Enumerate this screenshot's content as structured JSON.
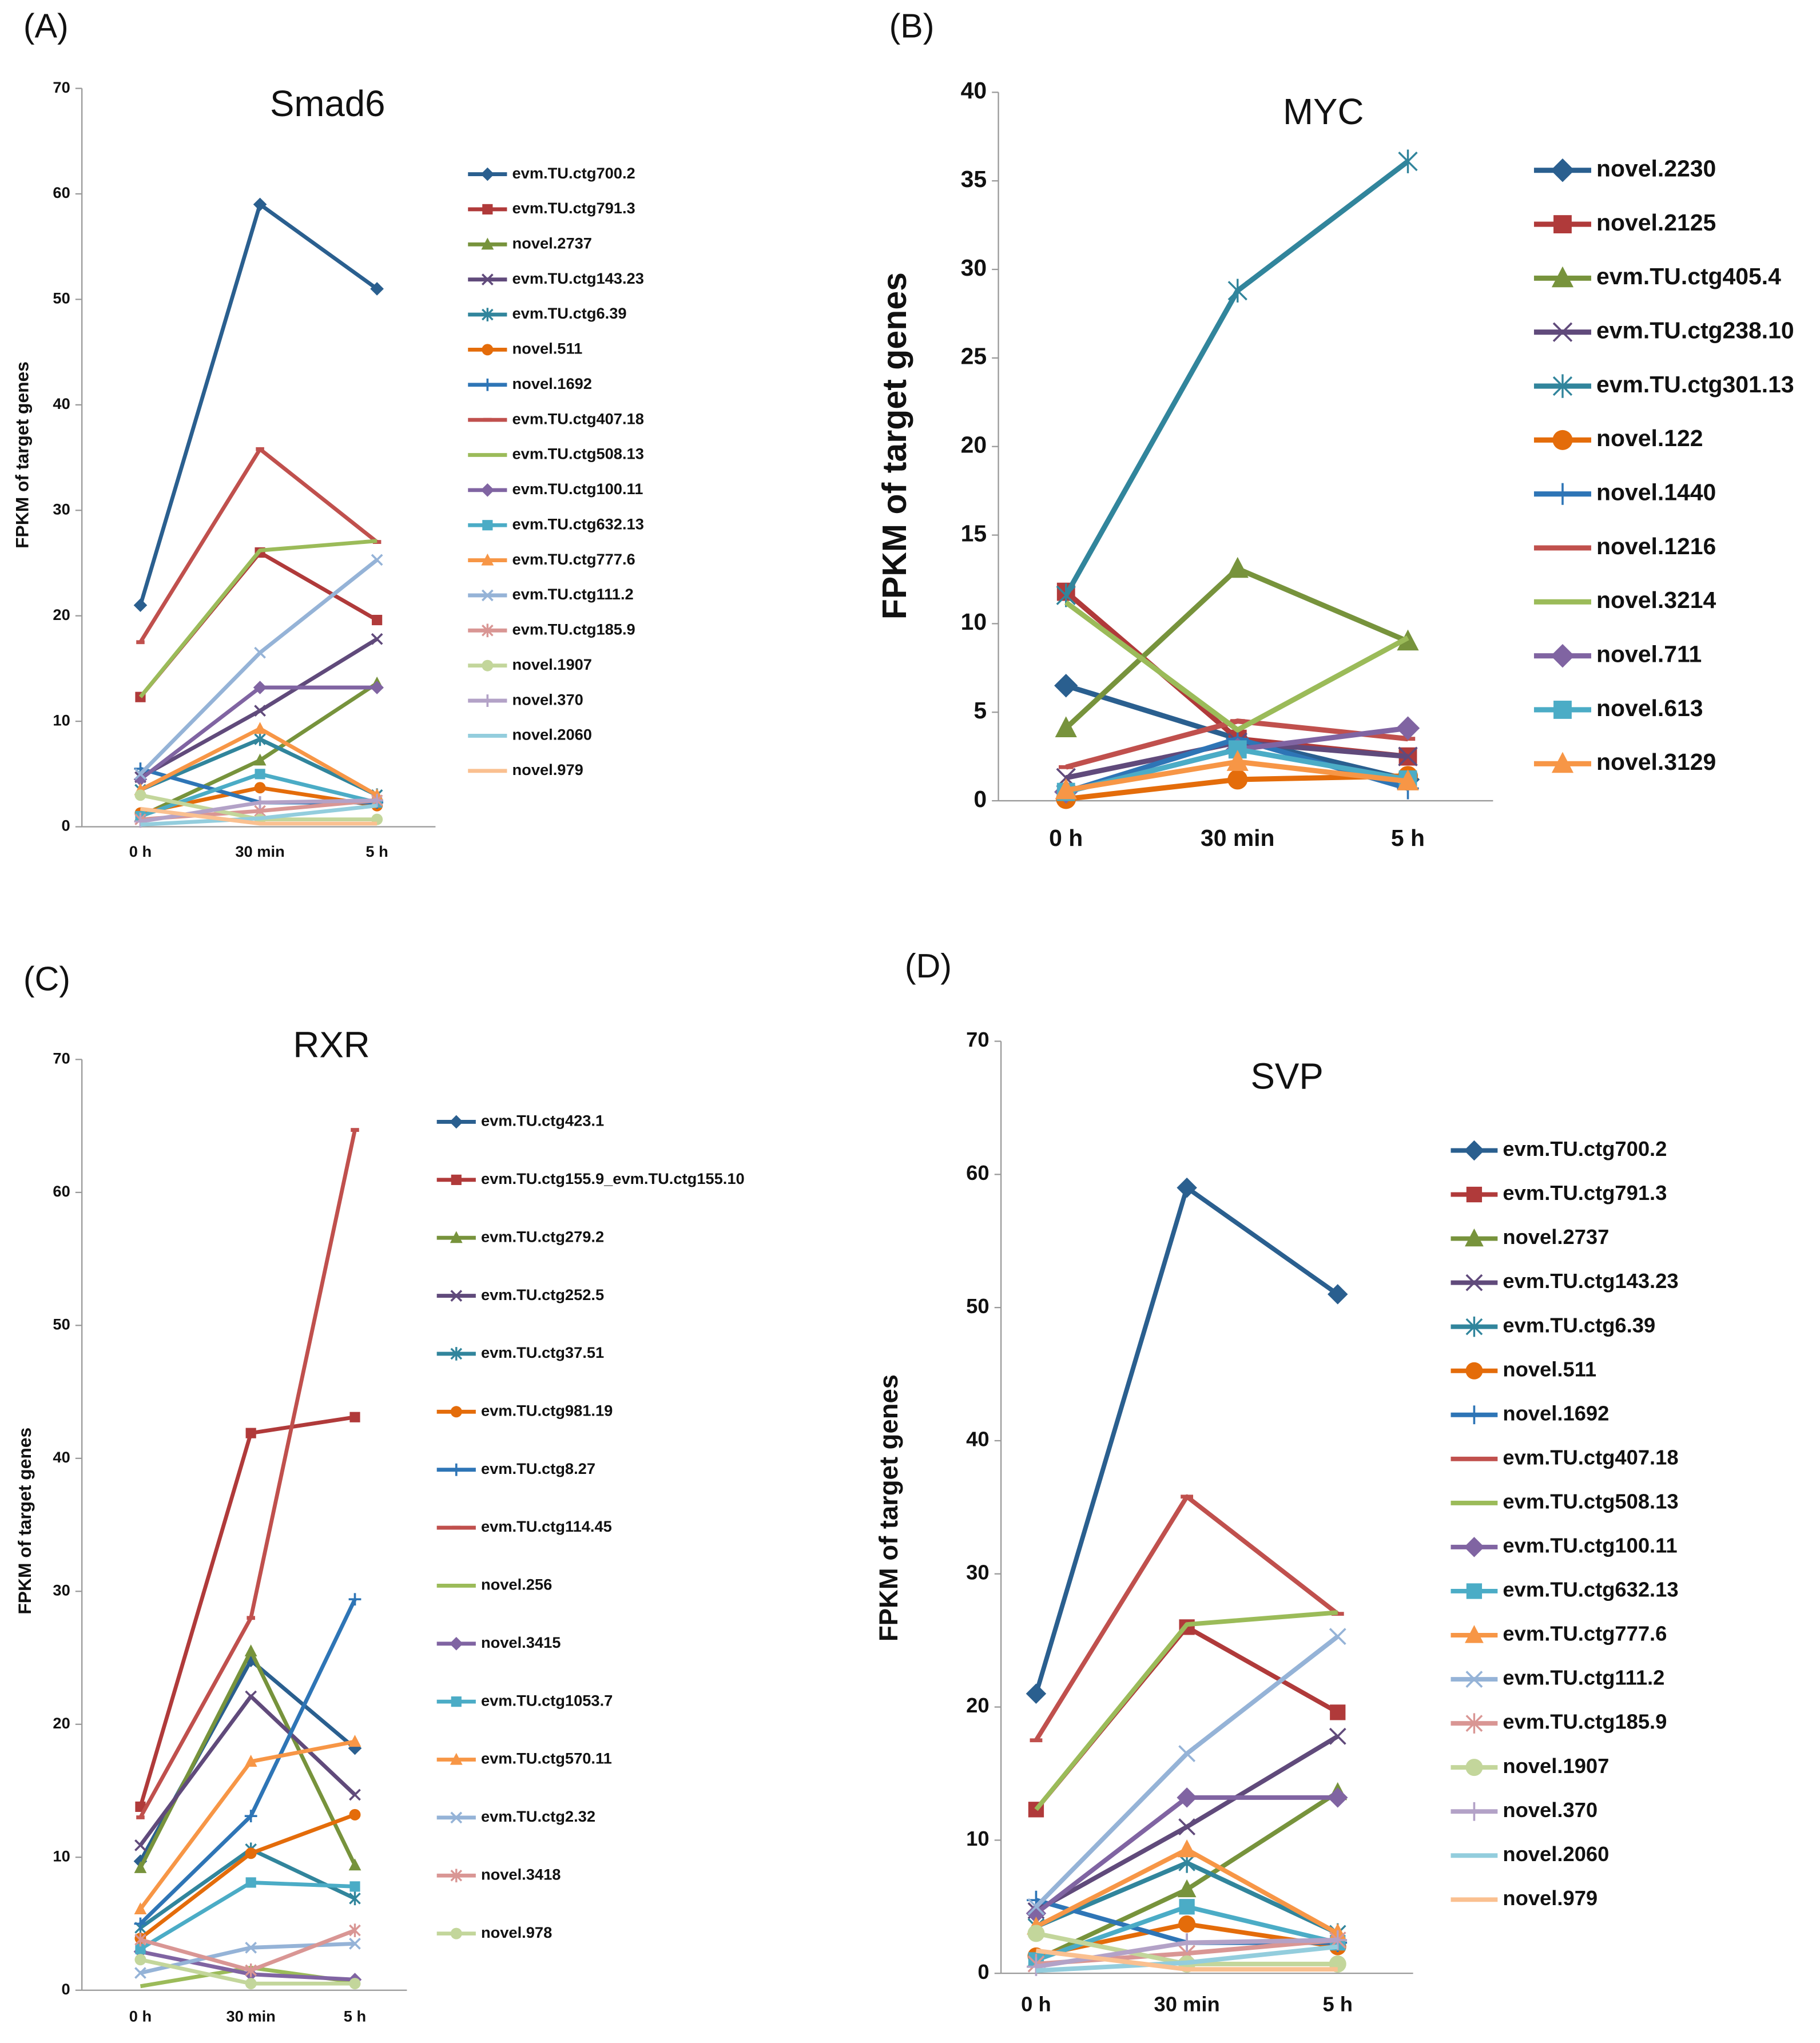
{
  "chart_data": [
    {
      "type": "line",
      "panel": "(A)",
      "title": "Smad6",
      "y_label": "FPKM of target genes",
      "categories": [
        "0 h",
        "30 min",
        "5 h"
      ],
      "ylim": [
        0,
        70
      ],
      "yticks": [
        0,
        10,
        20,
        30,
        40,
        50,
        60,
        70
      ],
      "series": [
        {
          "name": "evm.TU.ctg700.2",
          "color": "#2a5f8f",
          "marker": "diamond",
          "values": [
            21,
            59,
            51
          ]
        },
        {
          "name": "evm.TU.ctg791.3",
          "color": "#b03a3a",
          "marker": "square",
          "values": [
            12.3,
            26,
            19.6
          ]
        },
        {
          "name": "novel.2737",
          "color": "#77933c",
          "marker": "triangle",
          "values": [
            1,
            6.3,
            13.6
          ]
        },
        {
          "name": "evm.TU.ctg143.23",
          "color": "#604a7b",
          "marker": "x",
          "values": [
            4.7,
            11,
            17.8
          ]
        },
        {
          "name": "evm.TU.ctg6.39",
          "color": "#31859c",
          "marker": "star",
          "values": [
            3.5,
            8.3,
            3
          ]
        },
        {
          "name": "novel.511",
          "color": "#e46c0a",
          "marker": "circle",
          "values": [
            1.3,
            3.7,
            2
          ]
        },
        {
          "name": "novel.1692",
          "color": "#2e75b6",
          "marker": "plus",
          "values": [
            5.5,
            2.3,
            2.3
          ]
        },
        {
          "name": "evm.TU.ctg407.18",
          "color": "#c0504d",
          "marker": "dash",
          "values": [
            17.5,
            35.8,
            27
          ]
        },
        {
          "name": "evm.TU.ctg508.13",
          "color": "#9bbb59",
          "marker": "none",
          "values": [
            12.3,
            26.2,
            27.1
          ]
        },
        {
          "name": "evm.TU.ctg100.11",
          "color": "#8064a2",
          "marker": "diamond",
          "values": [
            4.5,
            13.2,
            13.2
          ]
        },
        {
          "name": "evm.TU.ctg632.13",
          "color": "#4bacc6",
          "marker": "square",
          "values": [
            1,
            5,
            2.3
          ]
        },
        {
          "name": "evm.TU.ctg777.6",
          "color": "#f79646",
          "marker": "triangle",
          "values": [
            3.5,
            9.3,
            3
          ]
        },
        {
          "name": "evm.TU.ctg111.2",
          "color": "#95b3d7",
          "marker": "x",
          "values": [
            5,
            16.5,
            25.3
          ]
        },
        {
          "name": "evm.TU.ctg185.9",
          "color": "#d99694",
          "marker": "star",
          "values": [
            0.7,
            1.5,
            2.5
          ]
        },
        {
          "name": "novel.1907",
          "color": "#c3d69b",
          "marker": "circle",
          "values": [
            3,
            0.7,
            0.7
          ]
        },
        {
          "name": "novel.370",
          "color": "#b3a2c7",
          "marker": "plus",
          "values": [
            0.5,
            2.3,
            2.5
          ]
        },
        {
          "name": "novel.2060",
          "color": "#93cddd",
          "marker": "none",
          "values": [
            0.2,
            0.8,
            2
          ]
        },
        {
          "name": "novel.979",
          "color": "#fac090",
          "marker": "none",
          "values": [
            1.7,
            0.3,
            0.3
          ]
        }
      ]
    },
    {
      "type": "line",
      "panel": "(B)",
      "title": "MYC",
      "y_label": "FPKM of target genes",
      "categories": [
        "0 h",
        "30 min",
        "5 h"
      ],
      "ylim": [
        0,
        40
      ],
      "yticks": [
        0,
        5,
        10,
        15,
        20,
        25,
        30,
        35,
        40
      ],
      "series": [
        {
          "name": "novel.2230",
          "color": "#2a5f8f",
          "marker": "diamond",
          "values": [
            6.5,
            3.5,
            1.2
          ]
        },
        {
          "name": "novel.2125",
          "color": "#b03a3a",
          "marker": "square",
          "values": [
            11.8,
            3.5,
            2.5
          ]
        },
        {
          "name": "evm.TU.ctg405.4",
          "color": "#77933c",
          "marker": "triangle",
          "values": [
            4.1,
            13.1,
            9
          ]
        },
        {
          "name": "evm.TU.ctg238.10",
          "color": "#604a7b",
          "marker": "x",
          "values": [
            1.3,
            3.3,
            2.5
          ]
        },
        {
          "name": "evm.TU.ctg301.13",
          "color": "#31859c",
          "marker": "star",
          "values": [
            11.6,
            28.8,
            36.1
          ]
        },
        {
          "name": "novel.122",
          "color": "#e46c0a",
          "marker": "circle",
          "values": [
            0.1,
            1.2,
            1.4
          ]
        },
        {
          "name": "novel.1440",
          "color": "#2e75b6",
          "marker": "plus",
          "values": [
            0.5,
            3.5,
            0.7
          ]
        },
        {
          "name": "novel.1216",
          "color": "#c0504d",
          "marker": "dash",
          "values": [
            1.9,
            4.5,
            3.5
          ]
        },
        {
          "name": "novel.3214",
          "color": "#9bbb59",
          "marker": "none",
          "values": [
            11.2,
            4,
            9.2
          ]
        },
        {
          "name": "novel.711",
          "color": "#8064a2",
          "marker": "diamond",
          "values": [
            0.5,
            2.9,
            4.1
          ]
        },
        {
          "name": "novel.613",
          "color": "#4bacc6",
          "marker": "square",
          "values": [
            0.5,
            2.9,
            1.2
          ]
        },
        {
          "name": "novel.3129",
          "color": "#f79646",
          "marker": "triangle",
          "values": [
            0.6,
            2.2,
            1.1
          ]
        }
      ]
    },
    {
      "type": "line",
      "panel": "(C)",
      "title": "RXR",
      "y_label": "FPKM of target genes",
      "categories": [
        "0 h",
        "30 min",
        "5 h"
      ],
      "ylim": [
        0,
        70
      ],
      "yticks": [
        0,
        10,
        20,
        30,
        40,
        50,
        60,
        70
      ],
      "series": [
        {
          "name": "evm.TU.ctg423.1",
          "color": "#2a5f8f",
          "marker": "diamond",
          "values": [
            9.7,
            24.8,
            18.2
          ]
        },
        {
          "name": "evm.TU.ctg155.9_evm.TU.ctg155.10",
          "color": "#b03a3a",
          "marker": "square",
          "values": [
            13.8,
            41.9,
            43.1
          ]
        },
        {
          "name": "evm.TU.ctg279.2",
          "color": "#77933c",
          "marker": "triangle",
          "values": [
            9.2,
            25.5,
            9.4
          ]
        },
        {
          "name": "evm.TU.ctg252.5",
          "color": "#604a7b",
          "marker": "x",
          "values": [
            10.9,
            22.1,
            14.7
          ]
        },
        {
          "name": "evm.TU.ctg37.51",
          "color": "#31859c",
          "marker": "star",
          "values": [
            4.7,
            10.6,
            6.9
          ]
        },
        {
          "name": "evm.TU.ctg981.19",
          "color": "#e46c0a",
          "marker": "circle",
          "values": [
            3.9,
            10.3,
            13.2
          ]
        },
        {
          "name": "evm.TU.ctg8.27",
          "color": "#2e75b6",
          "marker": "plus",
          "values": [
            5,
            13.1,
            29.4
          ]
        },
        {
          "name": "evm.TU.ctg114.45",
          "color": "#c0504d",
          "marker": "dash",
          "values": [
            13,
            28,
            64.7
          ]
        },
        {
          "name": "novel.256",
          "color": "#9bbb59",
          "marker": "none",
          "values": [
            0.3,
            1.7,
            0.6
          ]
        },
        {
          "name": "novel.3415",
          "color": "#8064a2",
          "marker": "diamond",
          "values": [
            2.9,
            1.2,
            0.8
          ]
        },
        {
          "name": "evm.TU.ctg1053.7",
          "color": "#4bacc6",
          "marker": "square",
          "values": [
            3.1,
            8.1,
            7.8
          ]
        },
        {
          "name": "evm.TU.ctg570.11",
          "color": "#f79646",
          "marker": "triangle",
          "values": [
            6.1,
            17.2,
            18.7
          ]
        },
        {
          "name": "evm.TU.ctg2.32",
          "color": "#95b3d7",
          "marker": "x",
          "values": [
            1.3,
            3.2,
            3.5
          ]
        },
        {
          "name": "novel.3418",
          "color": "#d99694",
          "marker": "star",
          "values": [
            3.8,
            1.5,
            4.5
          ]
        },
        {
          "name": "novel.978",
          "color": "#c3d69b",
          "marker": "circle",
          "values": [
            2.3,
            0.5,
            0.5
          ]
        }
      ]
    },
    {
      "type": "line",
      "panel": "(D)",
      "title": "SVP",
      "y_label": "FPKM of target genes",
      "categories": [
        "0 h",
        "30 min",
        "5 h"
      ],
      "ylim": [
        0,
        70
      ],
      "yticks": [
        0,
        10,
        20,
        30,
        40,
        50,
        60,
        70
      ],
      "series": [
        {
          "name": "evm.TU.ctg700.2",
          "color": "#2a5f8f",
          "marker": "diamond",
          "values": [
            21,
            59,
            51
          ]
        },
        {
          "name": "evm.TU.ctg791.3",
          "color": "#b03a3a",
          "marker": "square",
          "values": [
            12.3,
            26,
            19.6
          ]
        },
        {
          "name": "novel.2737",
          "color": "#77933c",
          "marker": "triangle",
          "values": [
            1,
            6.3,
            13.6
          ]
        },
        {
          "name": "evm.TU.ctg143.23",
          "color": "#604a7b",
          "marker": "x",
          "values": [
            4.7,
            11,
            17.8
          ]
        },
        {
          "name": "evm.TU.ctg6.39",
          "color": "#31859c",
          "marker": "star",
          "values": [
            3.5,
            8.3,
            3
          ]
        },
        {
          "name": "novel.511",
          "color": "#e46c0a",
          "marker": "circle",
          "values": [
            1.3,
            3.7,
            2
          ]
        },
        {
          "name": "novel.1692",
          "color": "#2e75b6",
          "marker": "plus",
          "values": [
            5.5,
            2.3,
            2.3
          ]
        },
        {
          "name": "evm.TU.ctg407.18",
          "color": "#c0504d",
          "marker": "dash",
          "values": [
            17.5,
            35.8,
            27
          ]
        },
        {
          "name": "evm.TU.ctg508.13",
          "color": "#9bbb59",
          "marker": "none",
          "values": [
            12.3,
            26.2,
            27.1
          ]
        },
        {
          "name": "evm.TU.ctg100.11",
          "color": "#8064a2",
          "marker": "diamond",
          "values": [
            4.5,
            13.2,
            13.2
          ]
        },
        {
          "name": "evm.TU.ctg632.13",
          "color": "#4bacc6",
          "marker": "square",
          "values": [
            1,
            5,
            2.3
          ]
        },
        {
          "name": "evm.TU.ctg777.6",
          "color": "#f79646",
          "marker": "triangle",
          "values": [
            3.5,
            9.3,
            3
          ]
        },
        {
          "name": "evm.TU.ctg111.2",
          "color": "#95b3d7",
          "marker": "x",
          "values": [
            5,
            16.5,
            25.3
          ]
        },
        {
          "name": "evm.TU.ctg185.9",
          "color": "#d99694",
          "marker": "star",
          "values": [
            0.7,
            1.5,
            2.5
          ]
        },
        {
          "name": "novel.1907",
          "color": "#c3d69b",
          "marker": "circle",
          "values": [
            3,
            0.7,
            0.7
          ]
        },
        {
          "name": "novel.370",
          "color": "#b3a2c7",
          "marker": "plus",
          "values": [
            0.5,
            2.3,
            2.5
          ]
        },
        {
          "name": "novel.2060",
          "color": "#93cddd",
          "marker": "none",
          "values": [
            0.2,
            0.8,
            2
          ]
        },
        {
          "name": "novel.979",
          "color": "#fac090",
          "marker": "none",
          "values": [
            1.7,
            0.3,
            0.3
          ]
        }
      ]
    }
  ]
}
